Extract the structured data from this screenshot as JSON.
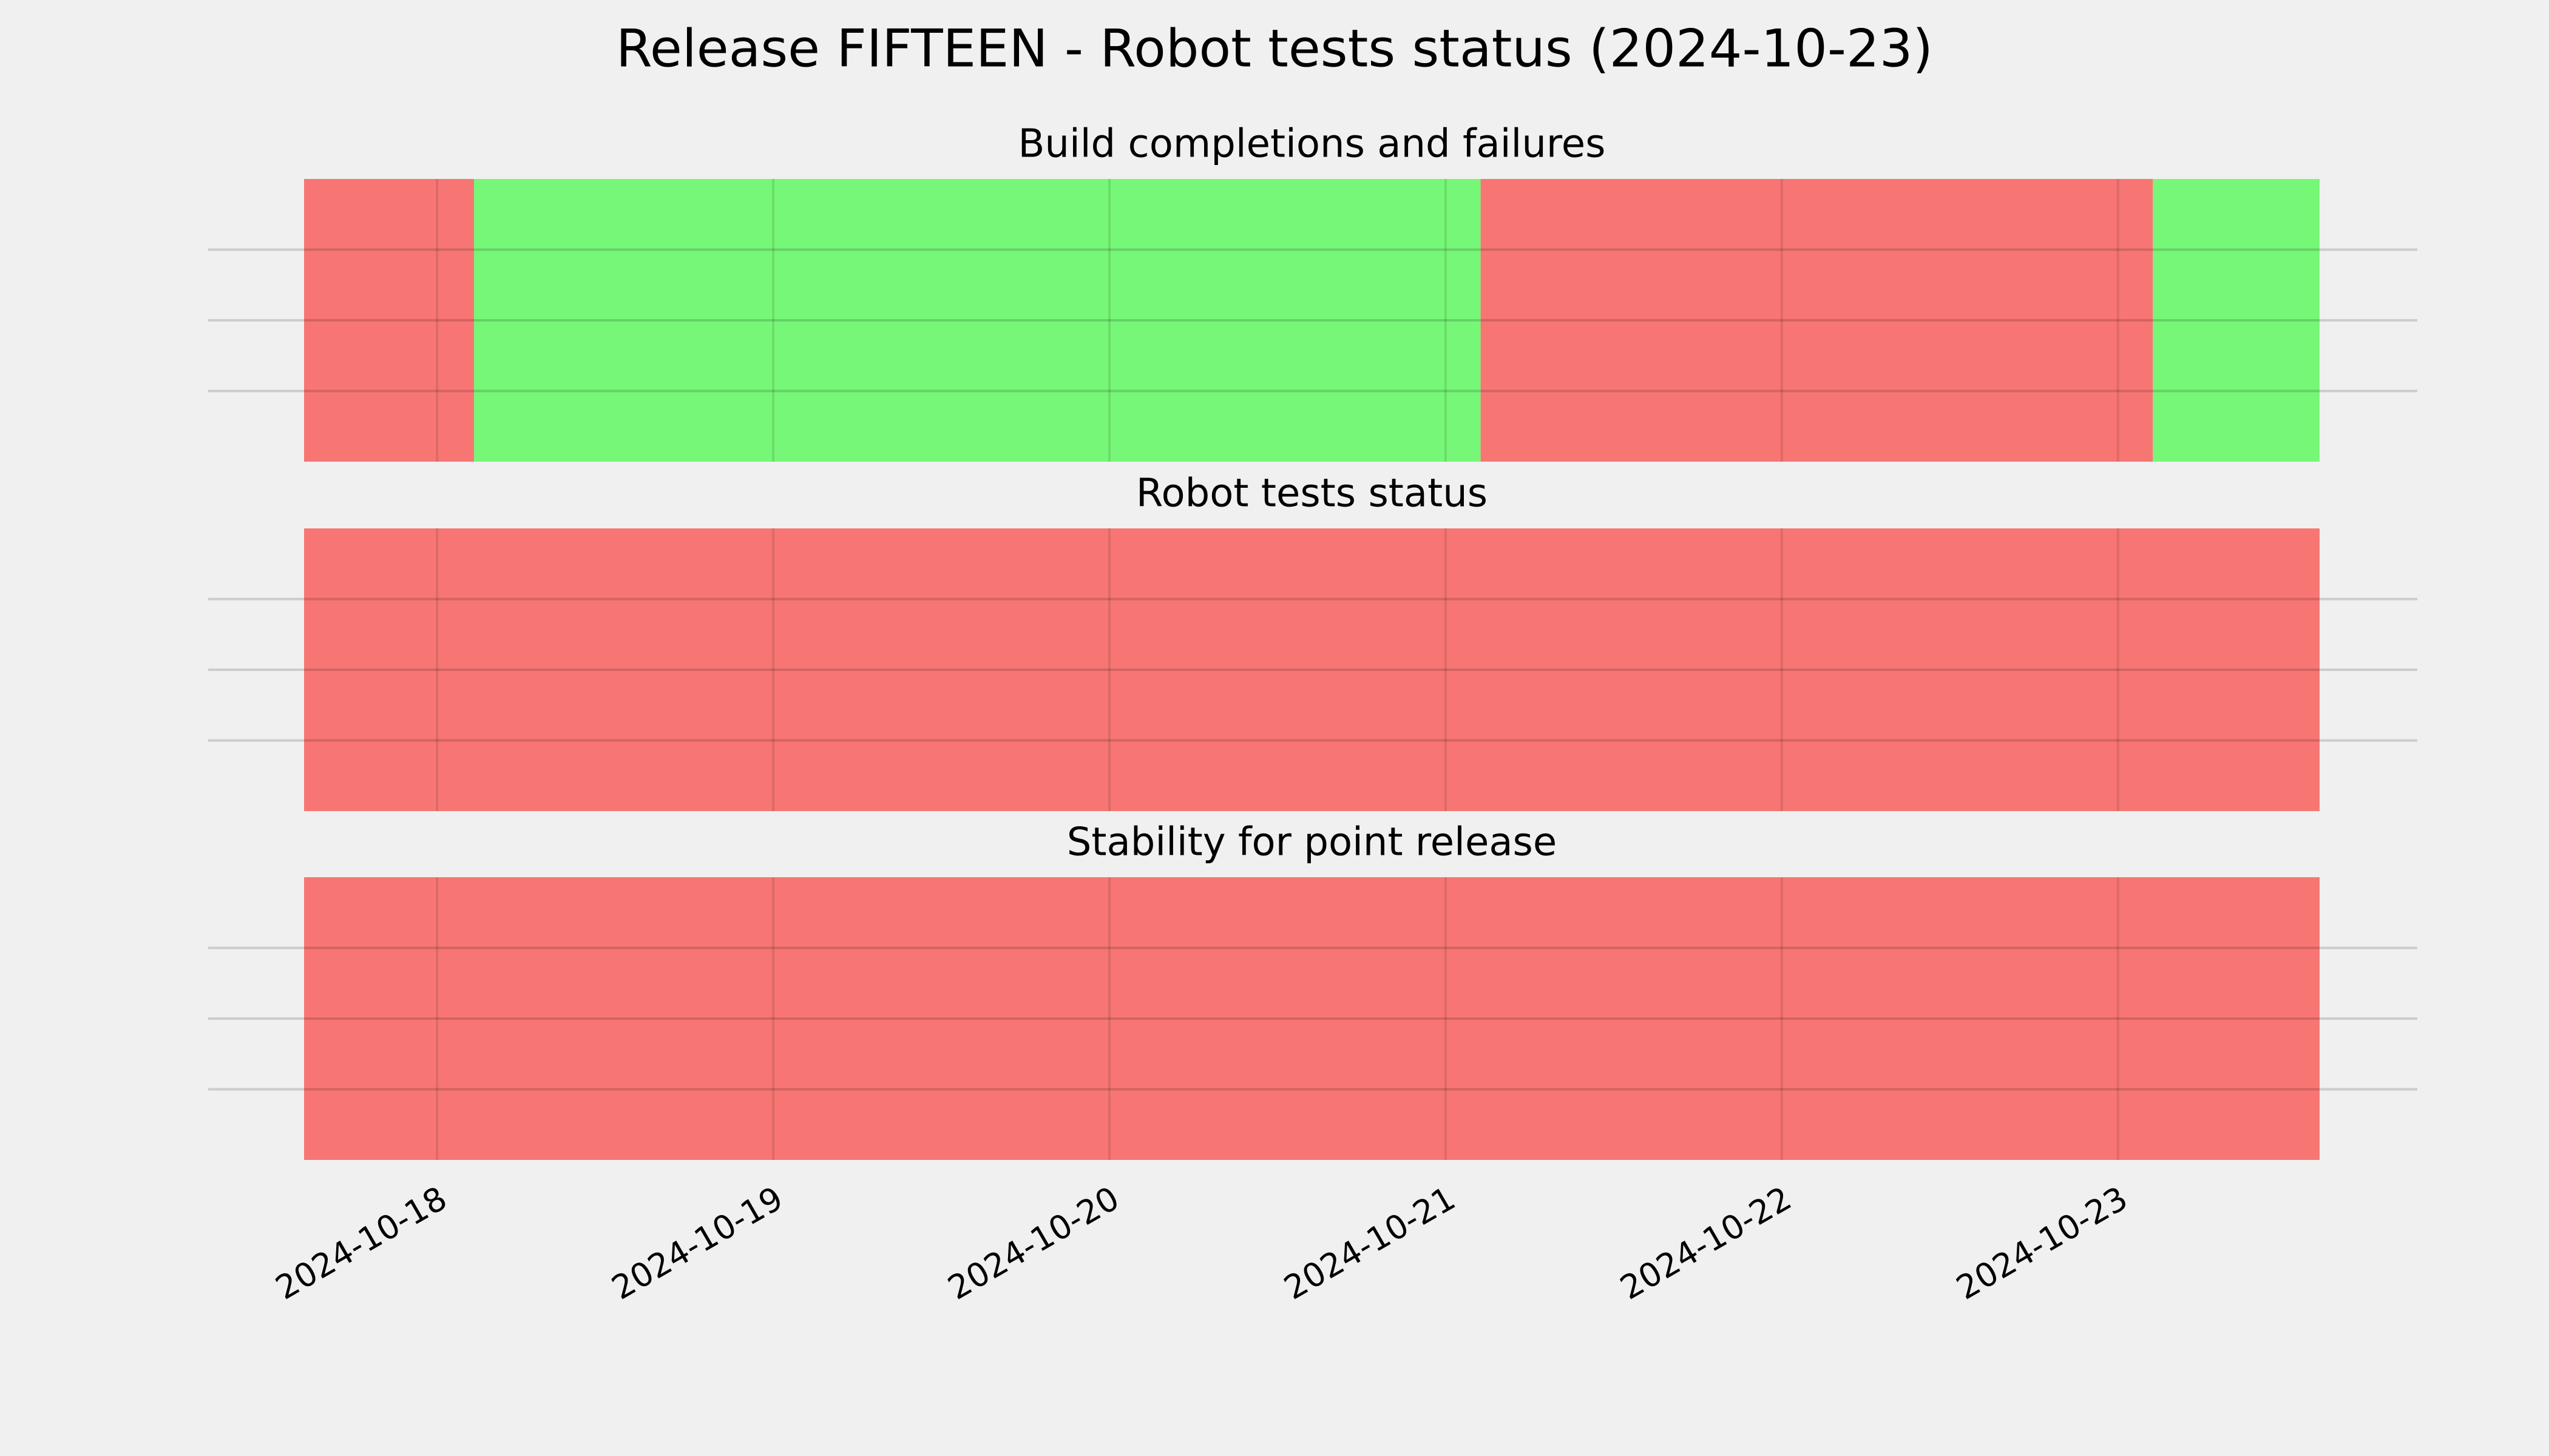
{
  "title": "Release FIFTEEN - Robot tests status (2024-10-23)",
  "chart_data": [
    {
      "type": "span",
      "title": "Build completions and failures",
      "segments": [
        {
          "start": "2024-10-17T14:30",
          "end": "2024-10-18T02:38",
          "color": "#f77673"
        },
        {
          "start": "2024-10-18T02:38",
          "end": "2024-10-21T02:30",
          "color": "#77f777"
        },
        {
          "start": "2024-10-21T02:30",
          "end": "2024-10-23T02:30",
          "color": "#f77673"
        },
        {
          "start": "2024-10-23T02:30",
          "end": "2024-10-23T14:24",
          "color": "#77f777"
        }
      ],
      "xlim": [
        "2024-10-17T14:30",
        "2024-10-23T14:24"
      ],
      "xticks": [
        "2024-10-18",
        "2024-10-19",
        "2024-10-20",
        "2024-10-21",
        "2024-10-22",
        "2024-10-23"
      ],
      "ylim": [
        0,
        1
      ],
      "yticks": [
        0.25,
        0.5,
        0.75
      ],
      "grid": true
    },
    {
      "type": "span",
      "title": "Robot tests status",
      "segments": [
        {
          "start": "2024-10-17T14:30",
          "end": "2024-10-23T14:24",
          "color": "#f77673"
        }
      ],
      "xlim": [
        "2024-10-17T14:30",
        "2024-10-23T14:24"
      ],
      "xticks": [
        "2024-10-18",
        "2024-10-19",
        "2024-10-20",
        "2024-10-21",
        "2024-10-22",
        "2024-10-23"
      ],
      "ylim": [
        0,
        1
      ],
      "yticks": [
        0.25,
        0.5,
        0.75
      ],
      "grid": true
    },
    {
      "type": "span",
      "title": "Stability for point release",
      "segments": [
        {
          "start": "2024-10-17T14:30",
          "end": "2024-10-23T14:24",
          "color": "#f77673"
        }
      ],
      "xlim": [
        "2024-10-17T14:30",
        "2024-10-23T14:24"
      ],
      "xticks": [
        "2024-10-18",
        "2024-10-19",
        "2024-10-20",
        "2024-10-21",
        "2024-10-22",
        "2024-10-23"
      ],
      "ylim": [
        0,
        1
      ],
      "yticks": [
        0.25,
        0.5,
        0.75
      ],
      "grid": true
    }
  ]
}
